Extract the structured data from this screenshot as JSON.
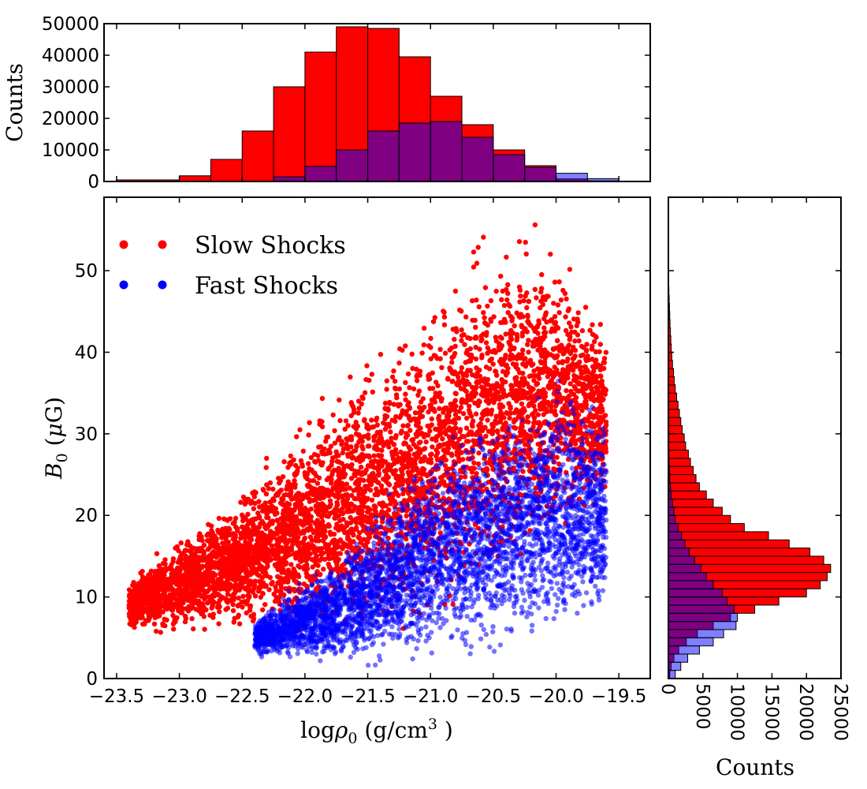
{
  "chart_data": [
    {
      "type": "scatter",
      "xlabel": "logρ0 (g/cm3)",
      "ylabel": "B0 (μG)",
      "xlim": [
        -23.6,
        -19.25
      ],
      "ylim": [
        0,
        59
      ],
      "xticks": [
        -23.5,
        -23.0,
        -22.5,
        -22.0,
        -21.5,
        -21.0,
        -20.5,
        -20.0,
        -19.5
      ],
      "xtick_labels": [
        "−23.5",
        "−23.0",
        "−22.5",
        "−22.0",
        "−21.5",
        "−21.0",
        "−20.5",
        "−20.0",
        "−19.5"
      ],
      "yticks": [
        0,
        10,
        20,
        30,
        40,
        50
      ],
      "ytick_labels": [
        "0",
        "10",
        "20",
        "30",
        "40",
        "50"
      ],
      "legend_position": "top-left",
      "grid": false,
      "series": [
        {
          "name": "Slow Shocks",
          "color": "#ff0000",
          "envelope": {
            "x": [
              -23.4,
              -23.2,
              -23.0,
              -22.8,
              -22.6,
              -22.4,
              -22.2,
              -22.0,
              -21.8,
              -21.6,
              -21.4,
              -21.2,
              -21.0,
              -20.8,
              -20.6,
              -20.4,
              -20.2,
              -20.0,
              -19.8,
              -19.6
            ],
            "y_low": [
              6,
              5,
              5,
              5,
              5,
              5,
              5,
              4,
              4,
              4,
              4,
              4,
              5,
              6,
              8,
              10,
              12,
              14,
              15,
              18
            ],
            "y_high": [
              12,
              15,
              18,
              20,
              22,
              26,
              29,
              33,
              37,
              40,
              42,
              45,
              48,
              52,
              56,
              57,
              57,
              56,
              52,
              45
            ]
          }
        },
        {
          "name": "Fast Shocks",
          "color": "#0000ff",
          "envelope": {
            "x": [
              -22.4,
              -22.2,
              -22.0,
              -21.8,
              -21.6,
              -21.4,
              -21.2,
              -21.0,
              -20.8,
              -20.6,
              -20.4,
              -20.2,
              -20.0,
              -19.8,
              -19.6
            ],
            "y_low": [
              3,
              2,
              1.5,
              1,
              1,
              1,
              1,
              1,
              1.5,
              2,
              2,
              3,
              3,
              4,
              6
            ],
            "y_high": [
              7,
              10,
              13,
              15,
              18,
              22,
              26,
              29,
              31,
              33,
              35,
              36,
              38,
              37,
              34
            ]
          }
        }
      ]
    },
    {
      "type": "bar",
      "orientation": "vertical",
      "ylabel": "Counts",
      "ylim": [
        0,
        50000
      ],
      "yticks": [
        0,
        10000,
        20000,
        30000,
        40000,
        50000
      ],
      "ytick_labels": [
        "0",
        "10000",
        "20000",
        "30000",
        "40000",
        "50000"
      ],
      "bin_edges": [
        -23.5,
        -23.0,
        -22.75,
        -22.5,
        -22.25,
        -22.0,
        -21.75,
        -21.5,
        -21.25,
        -21.0,
        -20.75,
        -20.5,
        -20.25,
        -20.0,
        -19.75,
        -19.5
      ],
      "series": [
        {
          "name": "Slow Shocks",
          "color": "#ff0000",
          "values": [
            500,
            1800,
            7000,
            16000,
            30000,
            41000,
            49000,
            48500,
            39500,
            27000,
            18000,
            10000,
            5000,
            800,
            200
          ]
        },
        {
          "name": "Fast Shocks",
          "color": "#0000ff",
          "values": [
            0,
            0,
            0,
            0,
            1500,
            4800,
            10000,
            16000,
            18500,
            19000,
            14000,
            8500,
            4500,
            2600,
            900
          ]
        }
      ]
    },
    {
      "type": "bar",
      "orientation": "horizontal",
      "xlabel": "Counts",
      "xlim": [
        0,
        25000
      ],
      "xticks": [
        0,
        5000,
        10000,
        15000,
        20000,
        25000
      ],
      "xtick_labels": [
        "0",
        "5000",
        "10000",
        "15000",
        "20000",
        "25000"
      ],
      "bin_edges": [
        0,
        1,
        2,
        3,
        4,
        5,
        6,
        7,
        8,
        9,
        10,
        11,
        12,
        13,
        14,
        15,
        16,
        17,
        18,
        19,
        20,
        21,
        22,
        23,
        24,
        25,
        26,
        27,
        28,
        29,
        30,
        31,
        32,
        33,
        34,
        35,
        36,
        37,
        38,
        39,
        40,
        41,
        42,
        43,
        44,
        45,
        46,
        47,
        48
      ],
      "series": [
        {
          "name": "Slow Shocks",
          "color": "#ff0000",
          "values": [
            200,
            400,
            800,
            1500,
            2600,
            4200,
            6500,
            9000,
            12500,
            16000,
            20000,
            22000,
            23000,
            23500,
            22500,
            20500,
            17500,
            14500,
            11000,
            9000,
            7800,
            6500,
            5500,
            4500,
            4000,
            3600,
            3200,
            2900,
            2500,
            2300,
            2000,
            1800,
            1600,
            1400,
            1200,
            1000,
            850,
            750,
            600,
            500,
            420,
            360,
            300,
            240,
            200,
            160,
            120,
            80
          ]
        },
        {
          "name": "Fast Shocks",
          "color": "#0000ff",
          "values": [
            1000,
            1800,
            2800,
            4500,
            6500,
            8000,
            9800,
            10000,
            9500,
            8500,
            7800,
            6500,
            5500,
            4700,
            3800,
            3000,
            2400,
            1900,
            1400,
            1000,
            800,
            600,
            400,
            300,
            200,
            150,
            100,
            80,
            60,
            40,
            30,
            20,
            10,
            0,
            0,
            0,
            0,
            0,
            0,
            0,
            0,
            0,
            0,
            0,
            0,
            0,
            0,
            0
          ]
        }
      ]
    }
  ]
}
